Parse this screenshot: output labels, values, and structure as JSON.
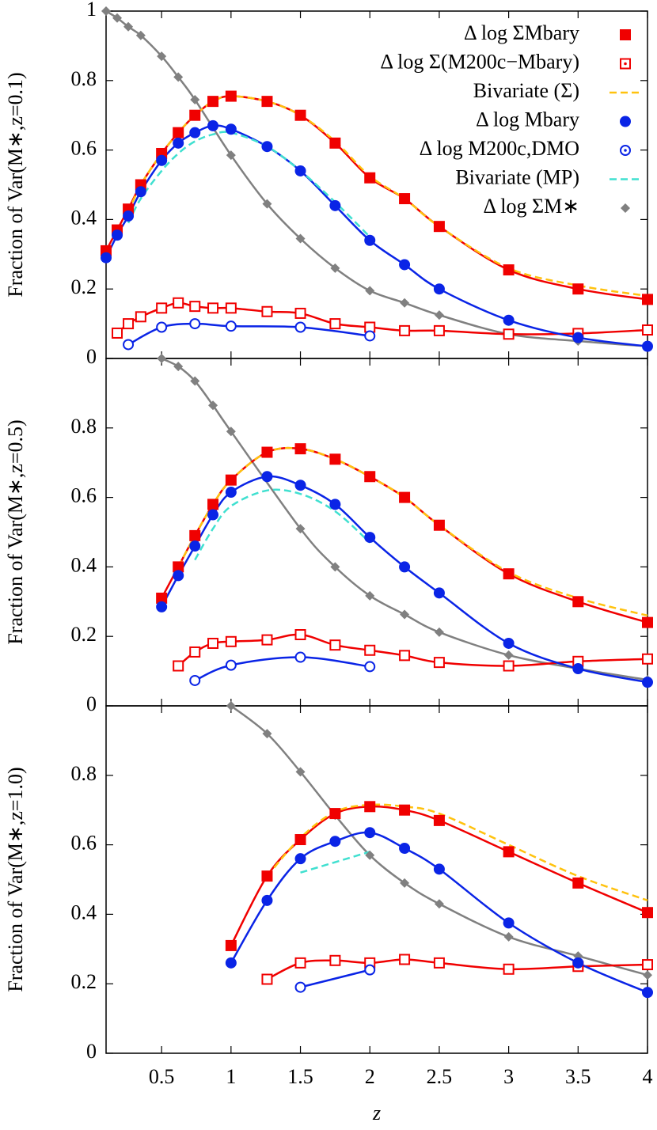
{
  "chart_data": [
    {
      "type": "line",
      "ylabel": "Fraction of Var(M∗,z=0.1)",
      "xlim": [
        0.1,
        4
      ],
      "ylim": [
        0,
        1
      ],
      "yticks": [
        0,
        0.2,
        0.4,
        0.6,
        0.8,
        1
      ],
      "legend": "upper right",
      "series": [
        {
          "name": "Δ log ΣMbary",
          "color": "#f00000",
          "marker": "square",
          "line": "solid",
          "x": [
            0.1,
            0.18,
            0.26,
            0.35,
            0.5,
            0.62,
            0.74,
            0.87,
            1.0,
            1.26,
            1.5,
            1.75,
            2.0,
            2.25,
            2.5,
            3.0,
            3.5,
            4.0
          ],
          "values": [
            0.31,
            0.37,
            0.43,
            0.5,
            0.59,
            0.65,
            0.7,
            0.74,
            0.755,
            0.74,
            0.7,
            0.62,
            0.52,
            0.46,
            0.38,
            0.255,
            0.2,
            0.17
          ]
        },
        {
          "name": "Δ log Σ(M200c−Mbary)",
          "color": "#f00000",
          "marker": "open-square",
          "line": "solid",
          "x": [
            0.18,
            0.26,
            0.35,
            0.5,
            0.62,
            0.74,
            0.87,
            1.0,
            1.26,
            1.5,
            1.75,
            2.0,
            2.25,
            2.5,
            3.0,
            3.5,
            4.0
          ],
          "values": [
            0.073,
            0.1,
            0.12,
            0.145,
            0.16,
            0.15,
            0.145,
            0.145,
            0.135,
            0.13,
            0.1,
            0.09,
            0.08,
            0.08,
            0.07,
            0.072,
            0.082
          ]
        },
        {
          "name": "Bivariate (Σ)",
          "color": "#ffc20e",
          "marker": "none",
          "line": "dashed",
          "x": [
            0.26,
            0.35,
            0.5,
            0.62,
            0.74,
            0.87,
            1.0,
            1.26,
            1.5,
            1.75,
            2.0,
            2.25,
            2.5,
            3.0,
            3.5,
            4.0
          ],
          "values": [
            0.42,
            0.5,
            0.59,
            0.65,
            0.7,
            0.74,
            0.755,
            0.74,
            0.7,
            0.625,
            0.525,
            0.46,
            0.38,
            0.26,
            0.21,
            0.18
          ]
        },
        {
          "name": "Δ log Mbary",
          "color": "#0a24e6",
          "marker": "circle",
          "line": "solid",
          "x": [
            0.1,
            0.18,
            0.26,
            0.35,
            0.5,
            0.62,
            0.74,
            0.87,
            1.0,
            1.26,
            1.5,
            1.75,
            2.0,
            2.25,
            2.5,
            3.0,
            3.5,
            4.0
          ],
          "values": [
            0.29,
            0.355,
            0.41,
            0.48,
            0.57,
            0.62,
            0.65,
            0.67,
            0.66,
            0.61,
            0.54,
            0.44,
            0.34,
            0.27,
            0.2,
            0.11,
            0.06,
            0.035
          ]
        },
        {
          "name": "Δ log M200c,DMO",
          "color": "#0a24e6",
          "marker": "open-circle",
          "line": "solid",
          "x": [
            0.26,
            0.5,
            0.74,
            1.0,
            1.5,
            2.0
          ],
          "values": [
            0.04,
            0.09,
            0.1,
            0.093,
            0.09,
            0.065
          ]
        },
        {
          "name": "Bivariate (MP)",
          "color": "#40e0d0",
          "marker": "none",
          "line": "dashed",
          "x": [
            0.26,
            0.35,
            0.5,
            0.62,
            0.74,
            0.87,
            1.0,
            1.26,
            1.5,
            1.75,
            2.0
          ],
          "values": [
            0.39,
            0.46,
            0.54,
            0.59,
            0.625,
            0.645,
            0.65,
            0.61,
            0.54,
            0.45,
            0.35
          ]
        },
        {
          "name": "Δ log ΣM∗",
          "color": "#808080",
          "marker": "diamond",
          "line": "solid",
          "x": [
            0.1,
            0.18,
            0.26,
            0.35,
            0.5,
            0.62,
            0.74,
            1.0,
            1.26,
            1.5,
            1.75,
            2.0,
            2.25,
            2.5,
            3.0,
            3.5,
            4.0
          ],
          "values": [
            1.0,
            0.98,
            0.955,
            0.93,
            0.87,
            0.81,
            0.745,
            0.585,
            0.445,
            0.345,
            0.26,
            0.195,
            0.16,
            0.125,
            0.07,
            0.05,
            0.035
          ]
        }
      ]
    },
    {
      "type": "line",
      "ylabel": "Fraction of Var(M∗,z=0.5)",
      "xlim": [
        0.1,
        4
      ],
      "ylim": [
        0,
        1
      ],
      "yticks": [
        0,
        0.2,
        0.4,
        0.6,
        0.8
      ],
      "series": [
        {
          "color": "#f00000",
          "marker": "square",
          "line": "solid",
          "x": [
            0.5,
            0.62,
            0.74,
            0.87,
            1.0,
            1.26,
            1.5,
            1.75,
            2.0,
            2.25,
            2.5,
            3.0,
            3.5,
            4.0
          ],
          "values": [
            0.31,
            0.4,
            0.49,
            0.58,
            0.65,
            0.73,
            0.74,
            0.71,
            0.66,
            0.6,
            0.52,
            0.38,
            0.3,
            0.24
          ]
        },
        {
          "color": "#f00000",
          "marker": "open-square",
          "line": "solid",
          "x": [
            0.62,
            0.74,
            0.87,
            1.0,
            1.26,
            1.5,
            1.75,
            2.0,
            2.25,
            2.5,
            3.0,
            3.5,
            4.0
          ],
          "values": [
            0.115,
            0.155,
            0.18,
            0.185,
            0.19,
            0.205,
            0.175,
            0.16,
            0.145,
            0.125,
            0.115,
            0.128,
            0.135
          ]
        },
        {
          "color": "#ffc20e",
          "marker": "none",
          "line": "dashed",
          "x": [
            0.62,
            0.74,
            0.87,
            1.0,
            1.26,
            1.5,
            1.75,
            2.0,
            2.25,
            2.5,
            3.0,
            3.5,
            4.0
          ],
          "values": [
            0.4,
            0.49,
            0.58,
            0.65,
            0.73,
            0.74,
            0.71,
            0.66,
            0.6,
            0.52,
            0.385,
            0.31,
            0.26
          ]
        },
        {
          "color": "#0a24e6",
          "marker": "circle",
          "line": "solid",
          "x": [
            0.5,
            0.62,
            0.74,
            0.87,
            1.0,
            1.26,
            1.5,
            1.75,
            2.0,
            2.25,
            2.5,
            3.0,
            3.5,
            4.0
          ],
          "values": [
            0.285,
            0.375,
            0.46,
            0.55,
            0.615,
            0.66,
            0.635,
            0.58,
            0.485,
            0.4,
            0.325,
            0.18,
            0.107,
            0.068
          ]
        },
        {
          "color": "#0a24e6",
          "marker": "open-circle",
          "line": "solid",
          "x": [
            0.74,
            1.0,
            1.5,
            2.0
          ],
          "values": [
            0.073,
            0.117,
            0.14,
            0.113
          ]
        },
        {
          "color": "#40e0d0",
          "marker": "none",
          "line": "dashed",
          "x": [
            0.74,
            0.87,
            1.0,
            1.26,
            1.5,
            1.75,
            2.0
          ],
          "values": [
            0.42,
            0.51,
            0.575,
            0.62,
            0.61,
            0.56,
            0.47
          ]
        },
        {
          "color": "#808080",
          "marker": "diamond",
          "line": "solid",
          "x": [
            0.5,
            0.62,
            0.74,
            0.87,
            1.0,
            1.5,
            1.75,
            2.0,
            2.25,
            2.5,
            3.0,
            3.5,
            4.0
          ],
          "values": [
            1.0,
            0.977,
            0.935,
            0.865,
            0.79,
            0.51,
            0.4,
            0.317,
            0.263,
            0.212,
            0.146,
            0.107,
            0.075
          ]
        }
      ]
    },
    {
      "type": "line",
      "ylabel": "Fraction of Var(M∗,z=1.0)",
      "xlabel": "z",
      "xlim": [
        0.1,
        4
      ],
      "ylim": [
        0,
        1
      ],
      "yticks": [
        0,
        0.2,
        0.4,
        0.6,
        0.8
      ],
      "xticks": [
        0.5,
        1,
        1.5,
        2,
        2.5,
        3,
        3.5,
        4
      ],
      "series": [
        {
          "color": "#f00000",
          "marker": "square",
          "line": "solid",
          "x": [
            1.0,
            1.26,
            1.5,
            1.75,
            2.0,
            2.25,
            2.5,
            3.0,
            3.5,
            4.0
          ],
          "values": [
            0.31,
            0.51,
            0.615,
            0.69,
            0.71,
            0.7,
            0.67,
            0.58,
            0.49,
            0.405
          ]
        },
        {
          "color": "#f00000",
          "marker": "open-square",
          "line": "solid",
          "x": [
            1.26,
            1.5,
            1.75,
            2.0,
            2.25,
            2.5,
            3.0,
            3.5,
            4.0
          ],
          "values": [
            0.213,
            0.26,
            0.267,
            0.26,
            0.27,
            0.26,
            0.242,
            0.25,
            0.255
          ]
        },
        {
          "color": "#ffc20e",
          "marker": "none",
          "line": "dashed",
          "x": [
            1.26,
            1.5,
            1.75,
            2.0,
            2.25,
            2.5,
            3.0,
            3.5,
            4.0
          ],
          "values": [
            0.51,
            0.62,
            0.695,
            0.715,
            0.71,
            0.69,
            0.6,
            0.51,
            0.44
          ]
        },
        {
          "color": "#0a24e6",
          "marker": "circle",
          "line": "solid",
          "x": [
            1.0,
            1.26,
            1.5,
            1.75,
            2.0,
            2.25,
            2.5,
            3.0,
            3.5,
            4.0
          ],
          "values": [
            0.26,
            0.44,
            0.56,
            0.61,
            0.635,
            0.59,
            0.53,
            0.375,
            0.26,
            0.175
          ]
        },
        {
          "color": "#0a24e6",
          "marker": "open-circle",
          "line": "solid",
          "x": [
            1.5,
            2.0
          ],
          "values": [
            0.19,
            0.24
          ]
        },
        {
          "color": "#40e0d0",
          "marker": "none",
          "line": "dashed",
          "x": [
            1.5,
            2.0
          ],
          "values": [
            0.52,
            0.58
          ]
        },
        {
          "color": "#808080",
          "marker": "diamond",
          "line": "solid",
          "x": [
            1.0,
            1.26,
            1.5,
            1.75,
            2.0,
            2.25,
            2.5,
            3.0,
            3.5,
            4.0
          ],
          "values": [
            1.0,
            0.92,
            0.81,
            0.685,
            0.57,
            0.49,
            0.43,
            0.335,
            0.28,
            0.225
          ]
        }
      ]
    }
  ]
}
